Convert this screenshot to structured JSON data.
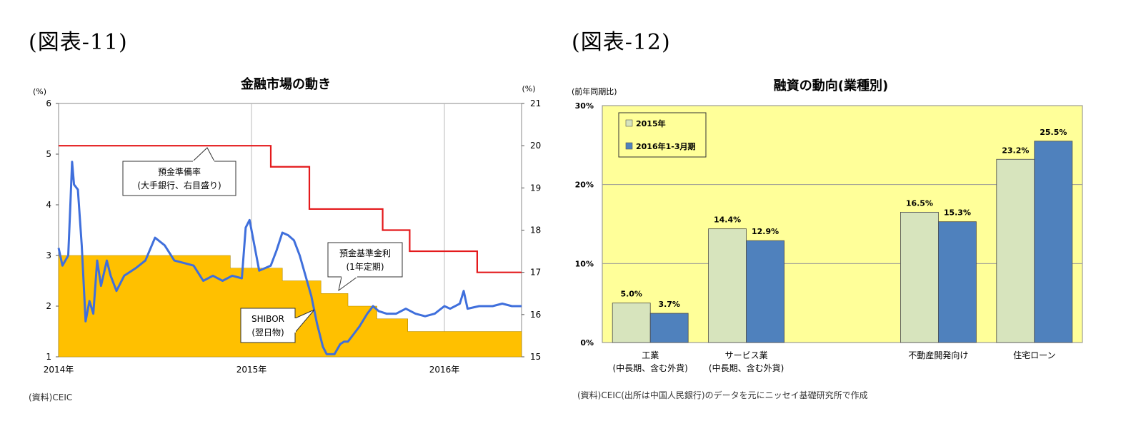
{
  "figure1": {
    "label": "(図表-11)",
    "source": "(資料)CEIC",
    "chart_data": {
      "type": "line",
      "title": "金融市場の動き",
      "left_unit": "(%)",
      "right_unit": "(%)",
      "left_ylim": [
        1,
        6
      ],
      "right_ylim": [
        15,
        21
      ],
      "left_ticks": [
        "1",
        "2",
        "3",
        "4",
        "5",
        "6"
      ],
      "right_ticks": [
        "15",
        "16",
        "17",
        "18",
        "19",
        "20",
        "21"
      ],
      "x_range": [
        2014.0,
        2016.4
      ],
      "x_ticks": [
        {
          "x": 2014.0,
          "label": "2014年"
        },
        {
          "x": 2015.0,
          "label": "2015年"
        },
        {
          "x": 2016.0,
          "label": "2016年"
        }
      ],
      "annotations": {
        "rrr": [
          "預金準備率",
          "(大手銀行、右目盛り)"
        ],
        "deposit": [
          "預金基準金利",
          "(1年定期)"
        ],
        "shibor": [
          "SHIBOR",
          "(翌日物)"
        ]
      },
      "series": [
        {
          "name": "預金基準金利(1年定期)",
          "kind": "area",
          "axis": "left",
          "color": "#ffc000",
          "points": [
            [
              2014.0,
              3.0
            ],
            [
              2014.89,
              3.0
            ],
            [
              2014.89,
              2.75
            ],
            [
              2015.16,
              2.75
            ],
            [
              2015.16,
              2.5
            ],
            [
              2015.36,
              2.5
            ],
            [
              2015.36,
              2.25
            ],
            [
              2015.5,
              2.25
            ],
            [
              2015.5,
              2.0
            ],
            [
              2015.65,
              2.0
            ],
            [
              2015.65,
              1.75
            ],
            [
              2015.81,
              1.75
            ],
            [
              2015.81,
              1.5
            ],
            [
              2016.4,
              1.5
            ]
          ]
        },
        {
          "name": "預金準備率(大手銀行、右目盛り)",
          "kind": "step",
          "axis": "right",
          "color": "#e41a1c",
          "points": [
            [
              2014.0,
              20.0
            ],
            [
              2015.1,
              20.0
            ],
            [
              2015.1,
              19.5
            ],
            [
              2015.3,
              19.5
            ],
            [
              2015.3,
              18.5
            ],
            [
              2015.68,
              18.5
            ],
            [
              2015.68,
              18.0
            ],
            [
              2015.82,
              18.0
            ],
            [
              2015.82,
              17.5
            ],
            [
              2016.17,
              17.5
            ],
            [
              2016.17,
              17.0
            ],
            [
              2016.4,
              17.0
            ]
          ]
        },
        {
          "name": "SHIBOR(翌日物)",
          "kind": "line",
          "axis": "left",
          "color": "#3f6fdc",
          "points": [
            [
              2014.0,
              3.15
            ],
            [
              2014.02,
              2.8
            ],
            [
              2014.05,
              3.0
            ],
            [
              2014.06,
              3.9
            ],
            [
              2014.07,
              4.85
            ],
            [
              2014.08,
              4.4
            ],
            [
              2014.1,
              4.3
            ],
            [
              2014.12,
              3.2
            ],
            [
              2014.14,
              1.7
            ],
            [
              2014.16,
              2.1
            ],
            [
              2014.18,
              1.85
            ],
            [
              2014.2,
              2.9
            ],
            [
              2014.22,
              2.4
            ],
            [
              2014.25,
              2.9
            ],
            [
              2014.27,
              2.6
            ],
            [
              2014.3,
              2.3
            ],
            [
              2014.34,
              2.6
            ],
            [
              2014.4,
              2.75
            ],
            [
              2014.45,
              2.9
            ],
            [
              2014.5,
              3.35
            ],
            [
              2014.55,
              3.2
            ],
            [
              2014.6,
              2.9
            ],
            [
              2014.65,
              2.85
            ],
            [
              2014.7,
              2.8
            ],
            [
              2014.75,
              2.5
            ],
            [
              2014.8,
              2.6
            ],
            [
              2014.85,
              2.5
            ],
            [
              2014.9,
              2.6
            ],
            [
              2014.95,
              2.55
            ],
            [
              2014.97,
              3.55
            ],
            [
              2014.99,
              3.7
            ],
            [
              2015.02,
              3.1
            ],
            [
              2015.04,
              2.7
            ],
            [
              2015.07,
              2.75
            ],
            [
              2015.1,
              2.8
            ],
            [
              2015.13,
              3.1
            ],
            [
              2015.16,
              3.45
            ],
            [
              2015.19,
              3.4
            ],
            [
              2015.22,
              3.3
            ],
            [
              2015.25,
              3.0
            ],
            [
              2015.28,
              2.6
            ],
            [
              2015.31,
              2.2
            ],
            [
              2015.34,
              1.65
            ],
            [
              2015.37,
              1.2
            ],
            [
              2015.39,
              1.05
            ],
            [
              2015.43,
              1.05
            ],
            [
              2015.46,
              1.25
            ],
            [
              2015.48,
              1.3
            ],
            [
              2015.5,
              1.3
            ],
            [
              2015.53,
              1.45
            ],
            [
              2015.56,
              1.6
            ],
            [
              2015.6,
              1.85
            ],
            [
              2015.63,
              2.0
            ],
            [
              2015.66,
              1.9
            ],
            [
              2015.7,
              1.85
            ],
            [
              2015.75,
              1.85
            ],
            [
              2015.8,
              1.95
            ],
            [
              2015.85,
              1.85
            ],
            [
              2015.9,
              1.8
            ],
            [
              2015.95,
              1.85
            ],
            [
              2016.0,
              2.0
            ],
            [
              2016.03,
              1.95
            ],
            [
              2016.08,
              2.05
            ],
            [
              2016.1,
              2.3
            ],
            [
              2016.12,
              1.95
            ],
            [
              2016.18,
              2.0
            ],
            [
              2016.25,
              2.0
            ],
            [
              2016.3,
              2.05
            ],
            [
              2016.35,
              2.0
            ],
            [
              2016.4,
              2.0
            ]
          ]
        }
      ]
    }
  },
  "figure2": {
    "label": "(図表-12)",
    "source": "(資料)CEIC(出所は中国人民銀行)のデータを元にニッセイ基礎研究所で作成",
    "chart_data": {
      "type": "bar",
      "title": "融資の動向(業種別)",
      "ylabel": "(前年同期比)",
      "ylim": [
        0,
        30
      ],
      "y_ticks": [
        "0%",
        "10%",
        "20%",
        "30%"
      ],
      "categories": [
        [
          "工業",
          "(中長期、含む外貨)"
        ],
        [
          "サービス業",
          "(中長期、含む外貨)"
        ],
        [
          ""
        ],
        [
          "不動産開発向け"
        ],
        [
          "住宅ローン"
        ]
      ],
      "series": [
        {
          "name": "2015年",
          "color": "#d7e4bd",
          "values": [
            5.0,
            14.4,
            null,
            16.5,
            23.2
          ],
          "labels": [
            "5.0%",
            "14.4%",
            "",
            "16.5%",
            "23.2%"
          ]
        },
        {
          "name": "2016年1-3月期",
          "color": "#4f81bd",
          "values": [
            3.7,
            12.9,
            null,
            15.3,
            25.5
          ],
          "labels": [
            "3.7%",
            "12.9%",
            "",
            "15.3%",
            "25.5%"
          ]
        }
      ]
    }
  }
}
